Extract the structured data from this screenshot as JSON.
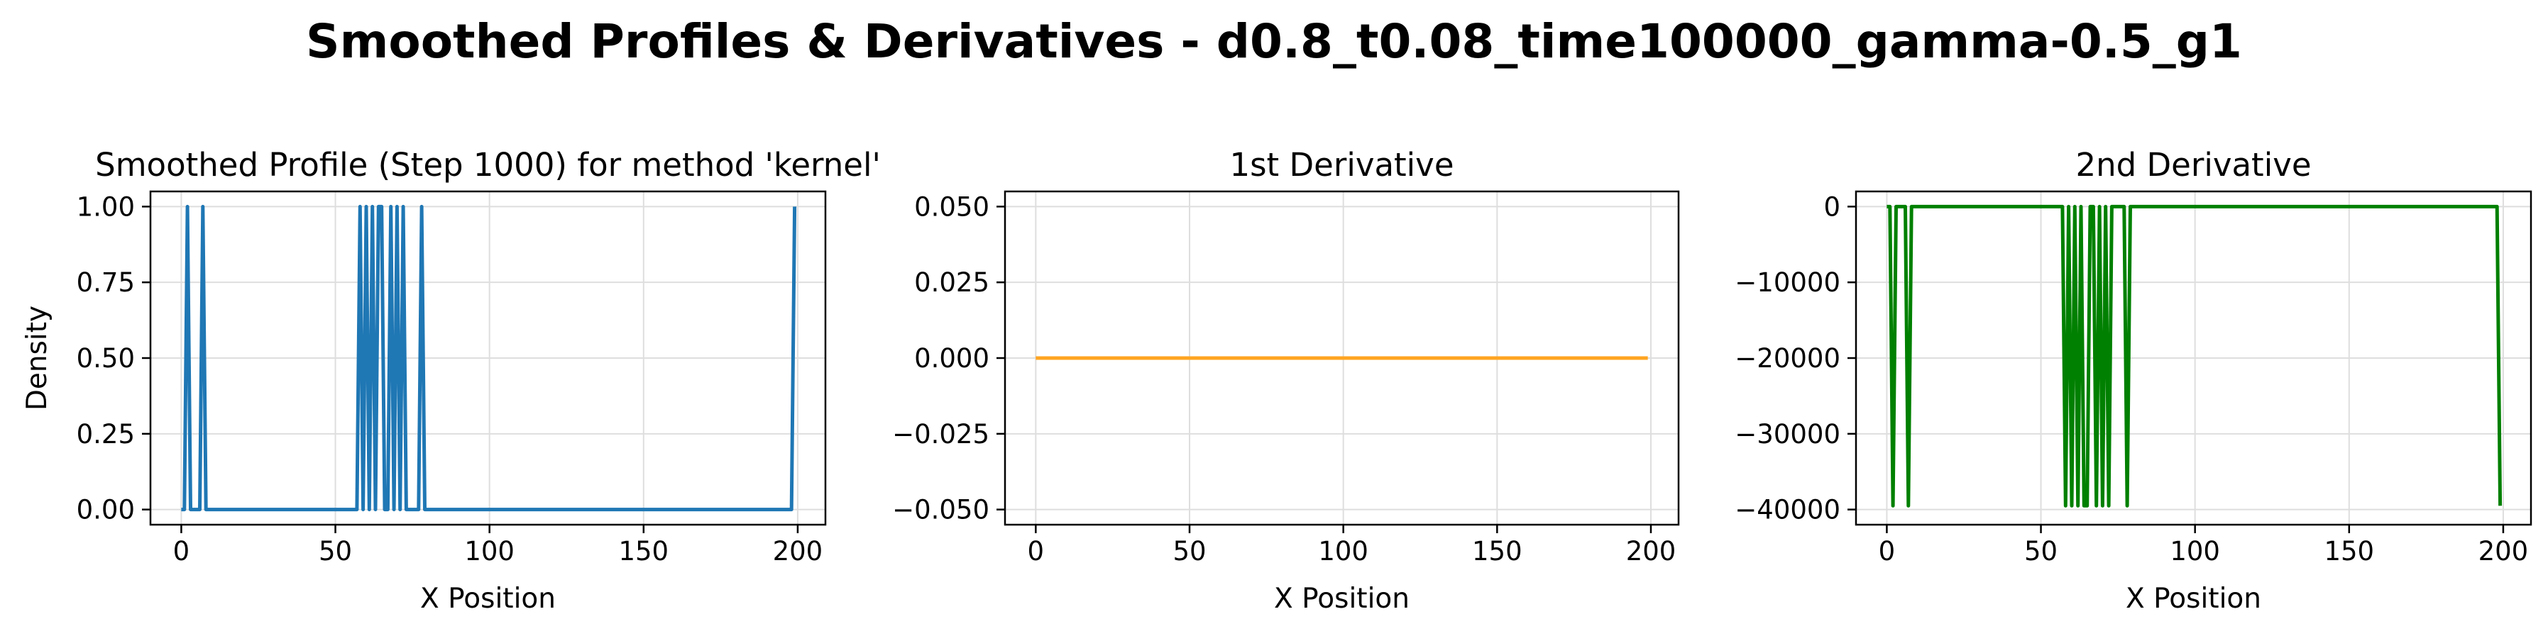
{
  "suptitle": "Smoothed Profiles & Derivatives - d0.8_t0.08_time100000_gamma-0.5_g1",
  "chart_data": [
    {
      "type": "line",
      "title": "Smoothed Profile (Step 1000) for method 'kernel'",
      "xlabel": "X Position",
      "ylabel": "Density",
      "xlim": [
        -10,
        209
      ],
      "ylim": [
        -0.05,
        1.05
      ],
      "xticks": [
        0,
        50,
        100,
        150,
        200
      ],
      "yticks": [
        0.0,
        0.25,
        0.5,
        0.75,
        1.0
      ],
      "ytick_labels": [
        "0.00",
        "0.25",
        "0.50",
        "0.75",
        "1.00"
      ],
      "grid": true,
      "color": "#1f77b4",
      "series": [
        {
          "x": [
            0,
            1,
            2,
            3,
            4,
            5,
            6,
            7,
            8,
            9,
            56,
            57,
            58,
            59,
            60,
            61,
            62,
            63,
            64,
            65,
            66,
            67,
            68,
            69,
            70,
            71,
            72,
            73,
            74,
            75,
            76,
            77,
            78,
            79,
            198,
            199
          ],
          "y": [
            0,
            0,
            1,
            0,
            0,
            0,
            0,
            1,
            0,
            0,
            0,
            0,
            1,
            0,
            1,
            0,
            1,
            0,
            1,
            1,
            0,
            0,
            1,
            0,
            1,
            0,
            1,
            0,
            0,
            0,
            0,
            0,
            1,
            0,
            0,
            1
          ]
        }
      ]
    },
    {
      "type": "line",
      "title": "1st Derivative",
      "xlabel": "X Position",
      "ylabel": "",
      "xlim": [
        -10,
        209
      ],
      "ylim": [
        -0.055,
        0.055
      ],
      "xticks": [
        0,
        50,
        100,
        150,
        200
      ],
      "yticks": [
        -0.05,
        -0.025,
        0.0,
        0.025,
        0.05
      ],
      "ytick_labels": [
        "−0.050",
        "−0.025",
        "0.000",
        "0.025",
        "0.050"
      ],
      "grid": true,
      "color": "#ffa522",
      "series": [
        {
          "x": [
            0,
            199
          ],
          "y": [
            0,
            0
          ]
        }
      ]
    },
    {
      "type": "line",
      "title": "2nd Derivative",
      "xlabel": "X Position",
      "ylabel": "",
      "xlim": [
        -10,
        209
      ],
      "ylim": [
        -42000,
        2000
      ],
      "xticks": [
        0,
        50,
        100,
        150,
        200
      ],
      "yticks": [
        -40000,
        -30000,
        -20000,
        -10000,
        0
      ],
      "ytick_labels": [
        "−40000",
        "−30000",
        "−20000",
        "−10000",
        "0"
      ],
      "grid": true,
      "color": "#008000",
      "series": [
        {
          "x": [
            0,
            1,
            2,
            3,
            4,
            5,
            6,
            7,
            8,
            9,
            56,
            57,
            58,
            59,
            60,
            61,
            62,
            63,
            64,
            65,
            66,
            67,
            68,
            69,
            70,
            71,
            72,
            73,
            74,
            75,
            76,
            77,
            78,
            79,
            198,
            199
          ],
          "y": [
            0,
            0,
            -39500,
            0,
            0,
            0,
            0,
            -39500,
            0,
            0,
            0,
            0,
            -39500,
            0,
            -39500,
            0,
            -39500,
            0,
            -39500,
            -39500,
            0,
            0,
            -39500,
            0,
            -39500,
            0,
            -39500,
            0,
            0,
            0,
            0,
            0,
            -39500,
            0,
            0,
            -39500
          ]
        }
      ]
    }
  ]
}
